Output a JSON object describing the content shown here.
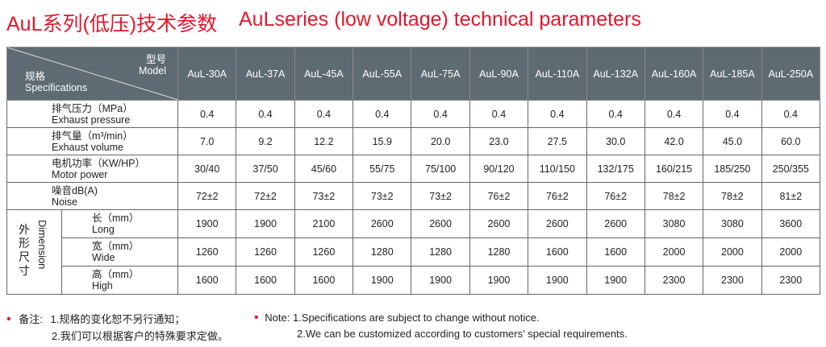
{
  "title_cn": "AuL系列(低压)技术参数",
  "title_en": "AuLseries (low voltage) technical parameters",
  "header": {
    "model_cn": "型号",
    "model_en": "Model",
    "spec_cn": "规格",
    "spec_en": "Specifications",
    "models": [
      "AuL-30A",
      "AuL-37A",
      "AuL-45A",
      "AuL-55A",
      "AuL-75A",
      "AuL-90A",
      "AuL-110A",
      "AuL-132A",
      "AuL-160A",
      "AuL-185A",
      "AuL-250A"
    ]
  },
  "rows": [
    {
      "cn": "排气压力（MPa）",
      "en": "Exhaust pressure",
      "values": [
        "0.4",
        "0.4",
        "0.4",
        "0.4",
        "0.4",
        "0.4",
        "0.4",
        "0.4",
        "0.4",
        "0.4",
        "0.4"
      ]
    },
    {
      "cn": "排气量（m³/min）",
      "en": "Exhaust volume",
      "values": [
        "7.0",
        "9.2",
        "12.2",
        "15.9",
        "20.0",
        "23.0",
        "27.5",
        "30.0",
        "42.0",
        "45.0",
        "60.0"
      ]
    },
    {
      "cn": "电机功率（KW/HP）",
      "en": "Motor power",
      "values": [
        "30/40",
        "37/50",
        "45/60",
        "55/75",
        "75/100",
        "90/120",
        "110/150",
        "132/175",
        "160/215",
        "185/250",
        "250/355"
      ]
    },
    {
      "cn": "噪音dB(A)",
      "en": "Noise",
      "values": [
        "72±2",
        "72±2",
        "73±2",
        "73±2",
        "73±2",
        "76±2",
        "76±2",
        "76±2",
        "78±2",
        "78±2",
        "81±2"
      ]
    }
  ],
  "dimension": {
    "cn": "外形尺寸",
    "en": "Dimension",
    "rows": [
      {
        "cn": "长（mm）",
        "en": "Long",
        "values": [
          "1900",
          "1900",
          "2100",
          "2600",
          "2600",
          "2600",
          "2600",
          "2600",
          "3080",
          "3080",
          "3600"
        ]
      },
      {
        "cn": "宽（mm）",
        "en": "Wide",
        "values": [
          "1260",
          "1260",
          "1260",
          "1280",
          "1280",
          "1280",
          "1600",
          "1600",
          "2000",
          "2000",
          "2000"
        ]
      },
      {
        "cn": "高（mm）",
        "en": "High",
        "values": [
          "1600",
          "1600",
          "1600",
          "1900",
          "1900",
          "1900",
          "1900",
          "1900",
          "2300",
          "2300",
          "2300"
        ]
      }
    ]
  },
  "notes": {
    "cn_label": "备注:",
    "cn": [
      "1.规格的变化恕不另行通知；",
      "2.我们可以根据客户的特殊要求定做。"
    ],
    "en_label": "Note:",
    "en": [
      "1.Specifications are subject to change without notice.",
      "2.We can be customized according to customers' special requirements."
    ]
  },
  "colors": {
    "accent": "#e0182d",
    "header_bg": "#5f6b72"
  }
}
